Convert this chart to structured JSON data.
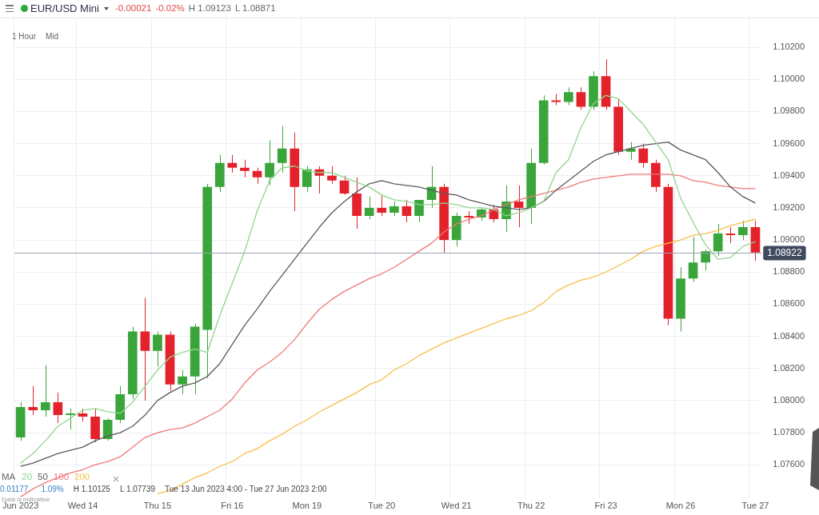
{
  "chart_data": {
    "type": "candlestick",
    "title": "EUR/USD Mini",
    "annotations": [
      "-0.00021",
      "-0.02%",
      "H 1.09123",
      "L 1.08871",
      "1 Hour",
      "Mid",
      "0.01177",
      "1.09%",
      "H 1.10125",
      "L 1.07739",
      "Tue 13 Jun 2023 4:00 - Tue 27 Jun 2023 2:00",
      "Data is indicative"
    ],
    "categories": [
      "Jun 2023",
      null,
      null,
      null,
      null,
      "Wed 14",
      null,
      null,
      null,
      null,
      null,
      "Thu 15",
      null,
      null,
      null,
      null,
      null,
      "Fri 16",
      null,
      null,
      null,
      null,
      null,
      "Mon 19",
      null,
      null,
      null,
      null,
      null,
      "Tue 20",
      null,
      null,
      null,
      null,
      null,
      "Wed 21",
      null,
      null,
      null,
      null,
      null,
      "Thu 22",
      null,
      null,
      null,
      null,
      null,
      "Fri 23",
      null,
      null,
      null,
      null,
      null,
      "Mon 26",
      null,
      null,
      null,
      null,
      null,
      "Tue 27"
    ],
    "ohlc": [
      [
        1.0777,
        1.0799,
        1.0775,
        1.0796
      ],
      [
        1.0796,
        1.0809,
        1.0791,
        1.0794
      ],
      [
        1.0794,
        1.0822,
        1.079,
        1.0799
      ],
      [
        1.0799,
        1.0805,
        1.0786,
        1.0791
      ],
      [
        1.0791,
        1.0795,
        1.0782,
        1.0792
      ],
      [
        1.0792,
        1.0795,
        1.0787,
        1.079
      ],
      [
        1.079,
        1.0795,
        1.0774,
        1.0776
      ],
      [
        1.0776,
        1.0789,
        1.0775,
        1.0788
      ],
      [
        1.0788,
        1.0809,
        1.0786,
        1.0804
      ],
      [
        1.0804,
        1.0846,
        1.0801,
        1.0843
      ],
      [
        1.0843,
        1.0864,
        1.08,
        1.0831
      ],
      [
        1.0831,
        1.0843,
        1.0821,
        1.0841
      ],
      [
        1.0841,
        1.0843,
        1.0806,
        1.081
      ],
      [
        1.081,
        1.0819,
        1.0804,
        1.0815
      ],
      [
        1.0815,
        1.0848,
        1.0804,
        1.0846
      ],
      [
        1.0844,
        1.0935,
        1.0814,
        1.0933
      ],
      [
        1.0933,
        1.0953,
        1.093,
        1.0948
      ],
      [
        1.0948,
        1.0953,
        1.0942,
        1.0945
      ],
      [
        1.0945,
        1.095,
        1.0939,
        1.0943
      ],
      [
        1.0943,
        1.0945,
        1.0935,
        1.0939
      ],
      [
        1.0939,
        1.0962,
        1.0934,
        1.0948
      ],
      [
        1.0948,
        1.0971,
        1.0942,
        1.0957
      ],
      [
        1.0957,
        1.0967,
        1.0918,
        1.0933
      ],
      [
        1.0933,
        1.0946,
        1.093,
        1.0944
      ],
      [
        1.0944,
        1.0946,
        1.0929,
        1.094
      ],
      [
        1.094,
        1.0946,
        1.0935,
        1.0937
      ],
      [
        1.0937,
        1.094,
        1.0928,
        1.0929
      ],
      [
        1.0929,
        1.0939,
        1.0907,
        1.0915
      ],
      [
        1.0915,
        1.0927,
        1.0913,
        1.092
      ],
      [
        1.092,
        1.0928,
        1.0915,
        1.0917
      ],
      [
        1.0917,
        1.0924,
        1.0915,
        1.0921
      ],
      [
        1.0921,
        1.0925,
        1.0911,
        1.0915
      ],
      [
        1.0915,
        1.0925,
        1.0911,
        1.0925
      ],
      [
        1.0925,
        1.0946,
        1.092,
        1.0933
      ],
      [
        1.0933,
        1.0935,
        1.0892,
        1.09
      ],
      [
        1.09,
        1.0917,
        1.0896,
        1.0915
      ],
      [
        1.0915,
        1.0918,
        1.091,
        1.0914
      ],
      [
        1.0914,
        1.092,
        1.0912,
        1.0919
      ],
      [
        1.0919,
        1.0922,
        1.0911,
        1.0913
      ],
      [
        1.0913,
        1.0934,
        1.0905,
        1.0924
      ],
      [
        1.0924,
        1.0934,
        1.0908,
        1.092
      ],
      [
        1.092,
        1.0957,
        1.091,
        1.0948
      ],
      [
        1.0948,
        1.099,
        1.0947,
        1.0987
      ],
      [
        1.0987,
        1.0991,
        1.0984,
        1.0986
      ],
      [
        1.0986,
        1.0995,
        1.0984,
        1.0992
      ],
      [
        1.0992,
        1.0995,
        1.0981,
        1.0983
      ],
      [
        1.0983,
        1.1005,
        1.0981,
        1.1002
      ],
      [
        1.1002,
        1.10125,
        1.0981,
        1.0983
      ],
      [
        1.0983,
        1.0988,
        1.0953,
        1.0955
      ],
      [
        1.0955,
        1.0961,
        1.095,
        1.0957
      ],
      [
        1.0957,
        1.096,
        1.0945,
        1.0948
      ],
      [
        1.0948,
        1.095,
        1.093,
        1.0933
      ],
      [
        1.0933,
        1.0935,
        1.0847,
        1.0851
      ],
      [
        1.0851,
        1.0883,
        1.0843,
        1.0876
      ],
      [
        1.0876,
        1.0902,
        1.0874,
        1.0886
      ],
      [
        1.0886,
        1.0894,
        1.0881,
        1.0893
      ],
      [
        1.0893,
        1.091,
        1.089,
        1.0904
      ],
      [
        1.0904,
        1.0908,
        1.0898,
        1.0903
      ],
      [
        1.0903,
        1.0912,
        1.09,
        1.0908
      ],
      [
        1.0908,
        1.0912,
        1.0887,
        1.08922
      ]
    ],
    "series": [
      {
        "type": "line",
        "name": "20",
        "color": "#8fd68f",
        "values": [
          1.0761,
          1.0767,
          1.0775,
          1.0784,
          1.0789,
          1.0794,
          1.0795,
          1.0793,
          1.0792,
          1.0799,
          1.0809,
          1.0819,
          1.0827,
          1.083,
          1.0832,
          1.083,
          1.0853,
          1.0873,
          1.0893,
          1.0918,
          1.0937,
          1.0945,
          1.0946,
          1.0943,
          1.0942,
          1.0942,
          1.0939,
          1.0936,
          1.0933,
          1.0928,
          1.0925,
          1.0924,
          1.0922,
          1.0922,
          1.0923,
          1.0922,
          1.092,
          1.092,
          1.0919,
          1.0915,
          1.0917,
          1.092,
          1.0924,
          1.0942,
          1.095,
          1.097,
          1.0985,
          1.099,
          1.0988,
          1.098,
          1.0972,
          1.0961,
          1.095,
          1.0926,
          1.0911,
          1.0897,
          1.0888,
          1.0889,
          1.0896,
          1.0899
        ]
      },
      {
        "type": "line",
        "name": "50",
        "color": "#5a5a5a",
        "values": [
          1.0759,
          1.0761,
          1.0764,
          1.0767,
          1.0769,
          1.0771,
          1.0775,
          1.0778,
          1.078,
          1.0784,
          1.0791,
          1.08,
          1.0805,
          1.0809,
          1.0811,
          1.0815,
          1.0823,
          1.0835,
          1.0847,
          1.0857,
          1.0868,
          1.0878,
          1.0888,
          1.0898,
          1.0908,
          1.0917,
          1.0924,
          1.093,
          1.0935,
          1.0937,
          1.0935,
          1.0934,
          1.0933,
          1.0931,
          1.0929,
          1.0928,
          1.0925,
          1.0923,
          1.0921,
          1.092,
          1.0919,
          1.092,
          1.0924,
          1.0931,
          1.0937,
          1.0943,
          1.0949,
          1.0953,
          1.0955,
          1.0957,
          1.0959,
          1.096,
          1.0961,
          1.0956,
          1.0953,
          1.095,
          1.0942,
          1.0933,
          1.0927,
          1.0923
        ]
      },
      {
        "type": "line",
        "name": "100",
        "color": "#f07878",
        "values": [
          1.074,
          1.0745,
          1.0749,
          1.0752,
          1.0755,
          1.0757,
          1.076,
          1.0762,
          1.0765,
          1.0771,
          1.0777,
          1.078,
          1.0782,
          1.0783,
          1.0786,
          1.079,
          1.0794,
          1.0801,
          1.0811,
          1.0819,
          1.0824,
          1.083,
          1.0838,
          1.0848,
          1.0857,
          1.0863,
          1.0868,
          1.0872,
          1.0876,
          1.0879,
          1.0883,
          1.0888,
          1.0893,
          1.0898,
          1.0905,
          1.091,
          1.0913,
          1.0915,
          1.0919,
          1.0922,
          1.0925,
          1.0927,
          1.0929,
          1.0931,
          1.0933,
          1.0936,
          1.0938,
          1.0939,
          1.094,
          1.0941,
          1.0941,
          1.0941,
          1.0941,
          1.094,
          1.0937,
          1.0936,
          1.0934,
          1.0933,
          1.0932,
          1.0932
        ]
      },
      {
        "type": "line",
        "name": "200",
        "color": "#f7bf4a",
        "values": [
          null,
          null,
          null,
          null,
          null,
          null,
          null,
          null,
          null,
          null,
          null,
          1.0742,
          1.0744,
          1.0748,
          1.0752,
          1.0755,
          1.0759,
          1.0762,
          1.0767,
          1.077,
          1.0775,
          1.0779,
          1.0784,
          1.0788,
          1.0793,
          1.0797,
          1.0801,
          1.0805,
          1.081,
          1.0813,
          1.0819,
          1.0823,
          1.0828,
          1.0832,
          1.0836,
          1.0839,
          1.0842,
          1.0845,
          1.0848,
          1.0851,
          1.0853,
          1.0856,
          1.0861,
          1.0868,
          1.0872,
          1.0875,
          1.0877,
          1.088,
          1.0884,
          1.0888,
          1.0893,
          1.0896,
          1.0898,
          1.09,
          1.0903,
          1.0904,
          1.0906,
          1.0909,
          1.0911,
          1.0913
        ]
      }
    ],
    "legend_title": "MA",
    "legend": "bottom left",
    "ylim": [
      1.0739,
      1.1038
    ],
    "yticks": [
      {
        "value": 1.076,
        "label": "1.07600"
      },
      {
        "value": 1.078,
        "label": "1.07800"
      },
      {
        "value": 1.08,
        "label": "1.08000"
      },
      {
        "value": 1.082,
        "label": "1.08200"
      },
      {
        "value": 1.084,
        "label": "1.08400"
      },
      {
        "value": 1.086,
        "label": "1.08600"
      },
      {
        "value": 1.088,
        "label": "1.08800"
      },
      {
        "value": 1.09,
        "label": "1.09000"
      },
      {
        "value": 1.092,
        "label": "1.09200"
      },
      {
        "value": 1.094,
        "label": "1.09400"
      },
      {
        "value": 1.096,
        "label": "1.09600"
      },
      {
        "value": 1.098,
        "label": "1.09800"
      },
      {
        "value": 1.1,
        "label": "1.10000"
      },
      {
        "value": 1.102,
        "label": "1.10200"
      }
    ],
    "ref_lines": [
      {
        "axis": "y",
        "value": 1.08922,
        "label": "1.08922",
        "color": "#9aa3b0"
      }
    ],
    "grid": true
  }
}
